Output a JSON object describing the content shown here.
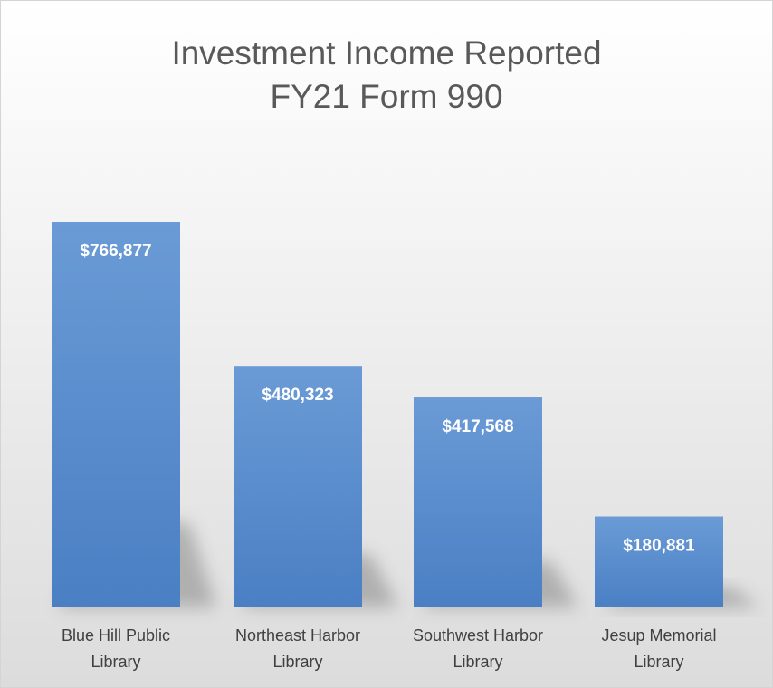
{
  "chart_data": {
    "type": "bar",
    "title": [
      "Investment Income Reported",
      "FY21 Form 990"
    ],
    "categories": [
      [
        "Blue Hill Public",
        "Library"
      ],
      [
        "Northeast Harbor",
        "Library"
      ],
      [
        "Southwest Harbor",
        "Library"
      ],
      [
        "Jesup Memorial",
        "Library"
      ]
    ],
    "values": [
      766877,
      480323,
      417568,
      180881
    ],
    "data_labels": [
      "$766,877",
      "$480,323",
      "$417,568",
      "$180,881"
    ],
    "xlabel": "",
    "ylabel": "",
    "ylim": [
      0,
      766877
    ],
    "grid": false,
    "legend": "none",
    "colors": {
      "bar_top": "#6a9bd6",
      "bar_bottom": "#4a7fc4",
      "data_label": "#ffffff",
      "category_label": "#404040",
      "title": "#595959"
    }
  }
}
